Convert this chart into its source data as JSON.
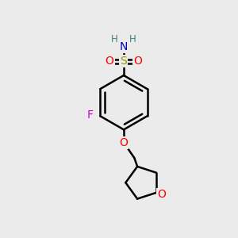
{
  "bg_color": "#ebebeb",
  "bond_color": "#000000",
  "bond_width": 1.8,
  "colors": {
    "S": "#999900",
    "O": "#ff0000",
    "N": "#0000cc",
    "F": "#cc00cc",
    "H": "#3a8080",
    "C": "#000000"
  }
}
